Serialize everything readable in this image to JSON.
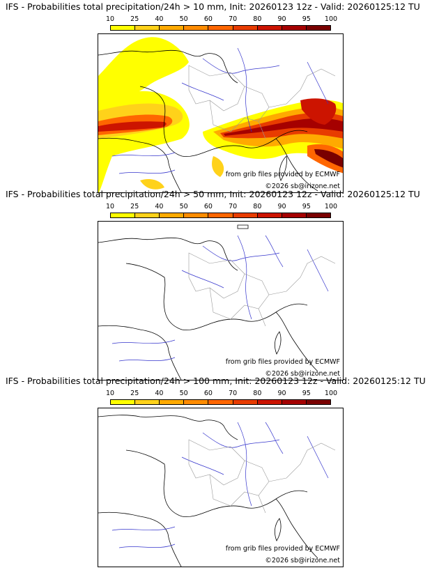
{
  "colorbar": {
    "ticks": [
      "10",
      "25",
      "40",
      "50",
      "60",
      "70",
      "80",
      "90",
      "95",
      "100"
    ],
    "colors": [
      "#ffff00",
      "#ffd21a",
      "#ffaa00",
      "#ff8c00",
      "#ff6600",
      "#e83c00",
      "#cc1400",
      "#a50000",
      "#7a0000"
    ]
  },
  "panels": [
    {
      "title": "IFS - Probabilities total precipitation/24h > 10 mm, Init: 20260123 12z - Valid: 20260125:12 TU",
      "source_note": "from grib files provided by ECMWF",
      "copyright": "©2026 sb@irizone.net"
    },
    {
      "title": "IFS - Probabilities total precipitation/24h > 50 mm, Init: 20260123 12z - Valid: 20260125:12 TU",
      "source_note": "from grib files provided by ECMWF",
      "copyright": "©2026 sb@irizone.net"
    },
    {
      "title": "IFS - Probabilities total precipitation/24h > 100 mm, Init: 20260123 12z - Valid: 20260125:12 TU",
      "source_note": "from grib files provided by ECMWF",
      "copyright": "©2026 sb@irizone.net"
    }
  ]
}
